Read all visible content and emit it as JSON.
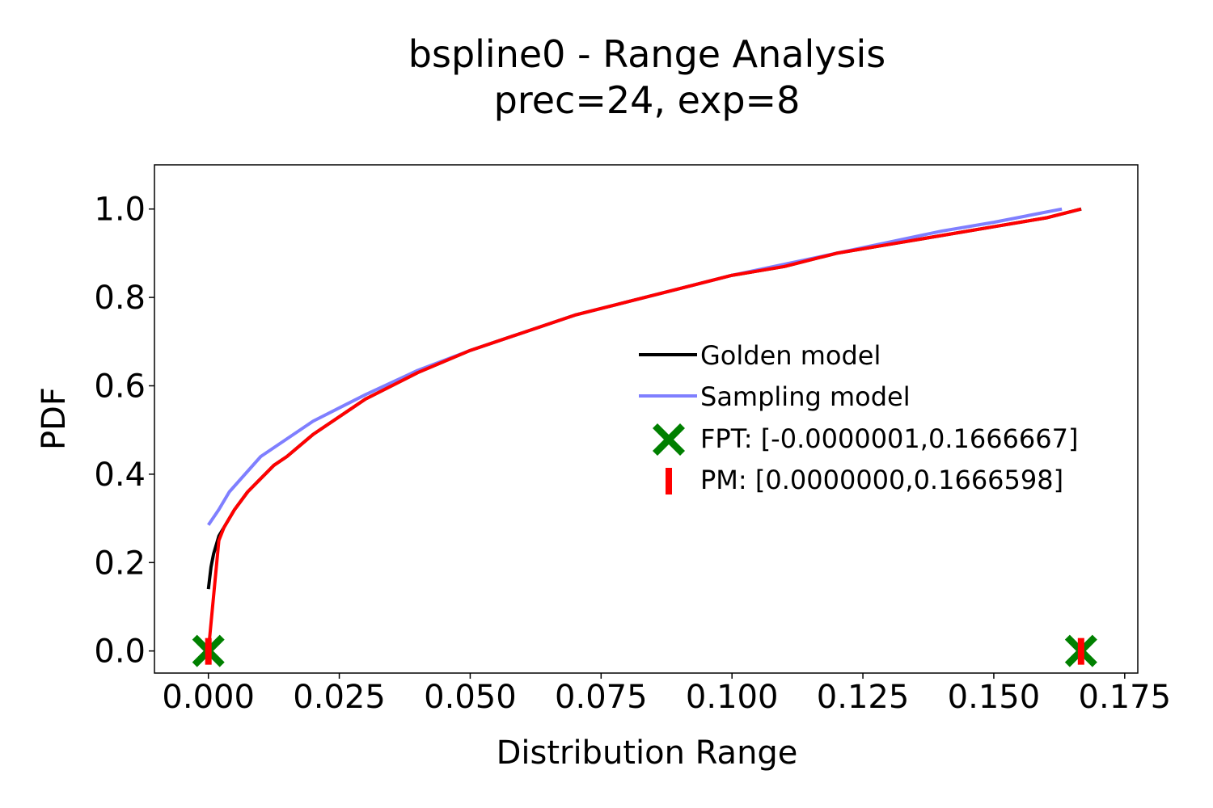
{
  "chart_data": {
    "type": "line",
    "title": "bspline0 - Range Analysis",
    "subtitle": "prec=24, exp=8",
    "xlabel": "Distribution Range",
    "ylabel": "PDF",
    "xlim": [
      -0.0103,
      0.1775
    ],
    "ylim": [
      -0.05,
      1.1
    ],
    "grid": false,
    "legend_position": "center-right",
    "xticks": [
      {
        "value": 0.0,
        "label": "0.000"
      },
      {
        "value": 0.025,
        "label": "0.025"
      },
      {
        "value": 0.05,
        "label": "0.050"
      },
      {
        "value": 0.075,
        "label": "0.075"
      },
      {
        "value": 0.1,
        "label": "0.100"
      },
      {
        "value": 0.125,
        "label": "0.125"
      },
      {
        "value": 0.15,
        "label": "0.150"
      },
      {
        "value": 0.175,
        "label": "0.175"
      }
    ],
    "yticks": [
      {
        "value": 0.0,
        "label": "0.0"
      },
      {
        "value": 0.2,
        "label": "0.2"
      },
      {
        "value": 0.4,
        "label": "0.4"
      },
      {
        "value": 0.6,
        "label": "0.6"
      },
      {
        "value": 0.8,
        "label": "0.8"
      },
      {
        "value": 1.0,
        "label": "1.0"
      }
    ],
    "series": [
      {
        "name": "Golden model",
        "kind": "line",
        "color": "#000000",
        "x": [
          0.0,
          0.0005,
          0.001,
          0.002,
          0.003,
          0.005,
          0.0075,
          0.01,
          0.0125,
          0.015,
          0.02,
          0.025,
          0.03,
          0.035,
          0.04,
          0.05,
          0.06,
          0.07,
          0.08,
          0.09,
          0.1,
          0.11,
          0.12,
          0.13,
          0.14,
          0.15,
          0.16,
          0.1667
        ],
        "y": [
          0.14,
          0.19,
          0.22,
          0.26,
          0.28,
          0.32,
          0.36,
          0.39,
          0.42,
          0.44,
          0.49,
          0.53,
          0.57,
          0.6,
          0.63,
          0.68,
          0.72,
          0.76,
          0.79,
          0.82,
          0.85,
          0.87,
          0.9,
          0.92,
          0.94,
          0.96,
          0.98,
          1.0
        ]
      },
      {
        "name": "Sampling model",
        "kind": "line",
        "color": "#7f7fff",
        "x": [
          0.0,
          0.002,
          0.004,
          0.007,
          0.01,
          0.015,
          0.02,
          0.025,
          0.03,
          0.04,
          0.05,
          0.06,
          0.07,
          0.08,
          0.09,
          0.1,
          0.11,
          0.12,
          0.13,
          0.14,
          0.15,
          0.163
        ],
        "y": [
          0.285,
          0.32,
          0.36,
          0.4,
          0.44,
          0.48,
          0.52,
          0.55,
          0.58,
          0.635,
          0.68,
          0.72,
          0.76,
          0.79,
          0.82,
          0.85,
          0.875,
          0.9,
          0.925,
          0.95,
          0.97,
          1.0
        ]
      },
      {
        "name": "FPT: [-0.0000001,0.1666667]",
        "kind": "markers",
        "marker": "X",
        "color": "#008000",
        "x": [
          -1e-07,
          0.1666667
        ],
        "y": [
          0.0,
          0.0
        ]
      },
      {
        "name": "PM: [0.0000000,0.1666598]",
        "kind": "markers",
        "marker": "|",
        "color": "#ff0000",
        "x": [
          0.0,
          0.1666598
        ],
        "y": [
          0.0,
          0.0
        ]
      },
      {
        "name": "",
        "kind": "line",
        "color": "#ff0000",
        "x": [
          0.0,
          0.002,
          0.003,
          0.005,
          0.0075,
          0.01,
          0.0125,
          0.015,
          0.02,
          0.025,
          0.03,
          0.035,
          0.04,
          0.05,
          0.06,
          0.07,
          0.08,
          0.09,
          0.1,
          0.11,
          0.12,
          0.13,
          0.14,
          0.15,
          0.16,
          0.1666598
        ],
        "y": [
          0.0,
          0.25,
          0.28,
          0.32,
          0.36,
          0.39,
          0.42,
          0.44,
          0.49,
          0.53,
          0.57,
          0.6,
          0.63,
          0.68,
          0.72,
          0.76,
          0.79,
          0.82,
          0.85,
          0.87,
          0.9,
          0.92,
          0.94,
          0.96,
          0.98,
          1.0
        ]
      }
    ]
  }
}
